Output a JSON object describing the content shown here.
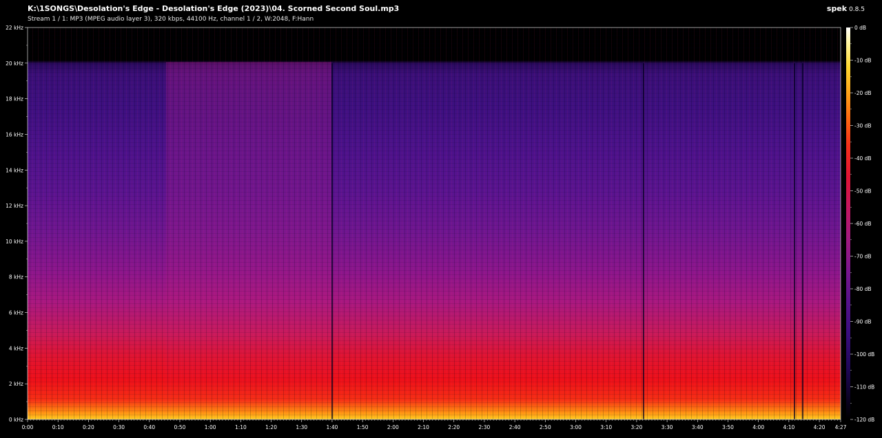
{
  "header": {
    "file_path": "K:\\1SONGS\\Desolation's Edge - Desolation's Edge (2023)\\04. Scorned Second Soul.mp3",
    "stream_info": "Stream 1 / 1: MP3 (MPEG audio layer 3), 320 kbps, 44100 Hz, channel 1 / 2, W:2048, F:Hann",
    "app_name": "spek",
    "app_version": "0.8.5"
  },
  "chart_data": {
    "type": "heatmap",
    "title": "",
    "xlabel": "",
    "ylabel": "",
    "x_ticks": [
      "0:00",
      "0:10",
      "0:20",
      "0:30",
      "0:40",
      "0:50",
      "1:00",
      "1:10",
      "1:20",
      "1:30",
      "1:40",
      "1:50",
      "2:00",
      "2:10",
      "2:20",
      "2:30",
      "2:40",
      "2:50",
      "3:00",
      "3:10",
      "3:20",
      "3:30",
      "3:40",
      "3:50",
      "4:00",
      "4:10",
      "4:20"
    ],
    "x_end_label": "4:27",
    "x_range_seconds": [
      0,
      267
    ],
    "y_ticks": [
      "0 kHz",
      "2 kHz",
      "4 kHz",
      "6 kHz",
      "8 kHz",
      "10 kHz",
      "12 kHz",
      "14 kHz",
      "16 kHz",
      "18 kHz",
      "20 kHz",
      "22 kHz"
    ],
    "y_range_khz": [
      0,
      22
    ],
    "colorbar_ticks": [
      "0 dB",
      "-10 dB",
      "-20 dB",
      "-30 dB",
      "-40 dB",
      "-50 dB",
      "-60 dB",
      "-70 dB",
      "-80 dB",
      "-90 dB",
      "-100 dB",
      "-110 dB",
      "-120 dB"
    ],
    "colorbar_range_db": [
      -120,
      0
    ],
    "frequency_cutoff_khz": 20,
    "colors": {
      "background": "#000000",
      "low_energy": "#2a0a5e",
      "mid_energy": "#a81880",
      "high_energy": "#ee1018",
      "peak_energy": "#ffd020"
    }
  }
}
